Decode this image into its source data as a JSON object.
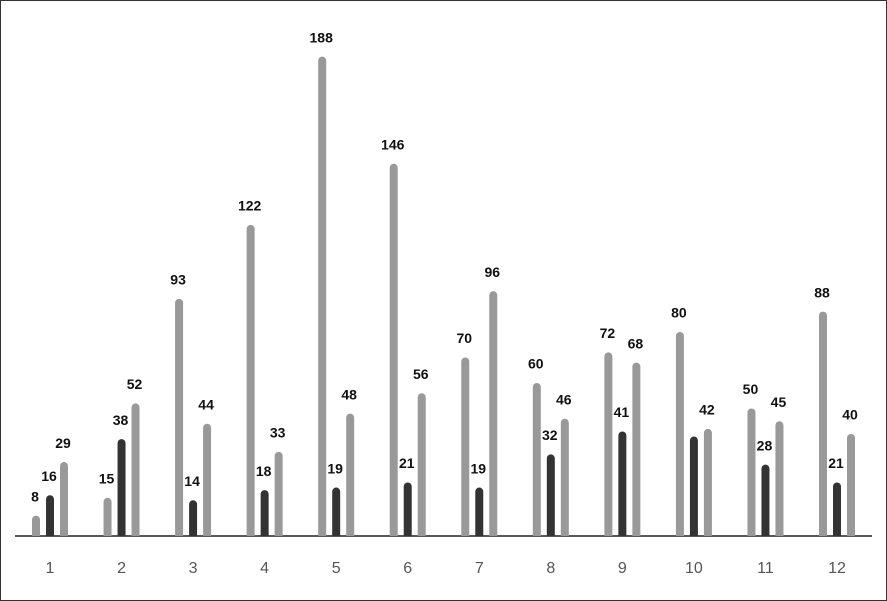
{
  "chart_data": {
    "type": "bar",
    "categories": [
      "1",
      "2",
      "3",
      "4",
      "5",
      "6",
      "7",
      "8",
      "9",
      "10",
      "11",
      "12"
    ],
    "series": [
      {
        "color": "#999999",
        "values": [
          8,
          15,
          93,
          122,
          188,
          146,
          70,
          60,
          72,
          80,
          50,
          88
        ]
      },
      {
        "color": "#333333",
        "values": [
          16,
          38,
          14,
          18,
          19,
          21,
          19,
          32,
          41,
          39,
          28,
          21
        ],
        "value_labels": [
          "16",
          "38",
          "14",
          "18",
          "19",
          "21",
          "19",
          "32",
          "41",
          null,
          "28",
          "21"
        ]
      },
      {
        "color": "#999999",
        "values": [
          29,
          52,
          44,
          33,
          48,
          56,
          96,
          46,
          68,
          42,
          45,
          40
        ]
      }
    ],
    "ylim": [
      0,
      200
    ]
  }
}
